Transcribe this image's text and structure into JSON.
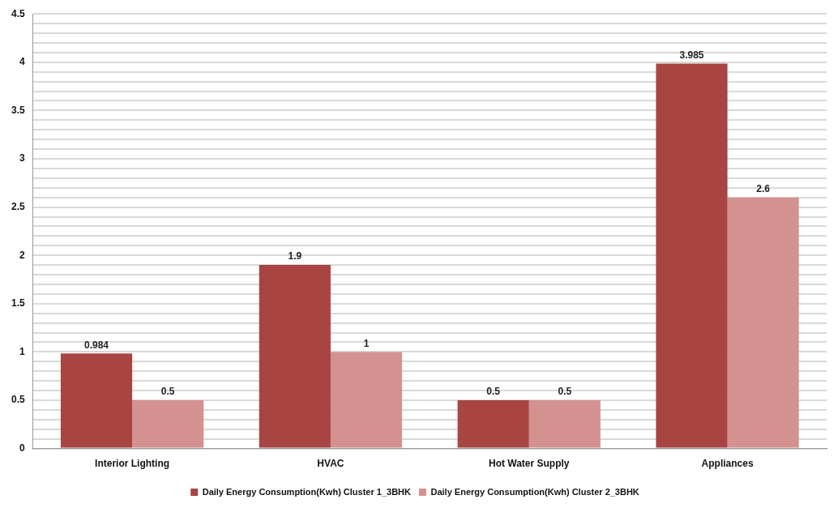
{
  "chart_data": {
    "type": "bar",
    "categories": [
      "Interior Lighting",
      "HVAC",
      "Hot Water Supply",
      "Appliances"
    ],
    "series": [
      {
        "name": "Daily Energy Consumption(Kwh) Cluster 1_3BHK",
        "color": "#a84442",
        "values": [
          0.984,
          1.9,
          0.5,
          3.985
        ]
      },
      {
        "name": "Daily Energy Consumption(Kwh) Cluster 2_3BHK",
        "color": "#d39190",
        "values": [
          0.5,
          1,
          0.5,
          2.6
        ]
      }
    ],
    "ylim": [
      0,
      4.5
    ],
    "yticks": [
      0,
      {
        "value": 0.1,
        "label": null
      },
      {
        "value": 0.2,
        "label": null
      },
      {
        "value": 0.3,
        "label": null
      },
      {
        "value": 0.4,
        "label": null
      },
      0.5,
      {
        "value": 0.6,
        "label": null
      },
      {
        "value": 0.7,
        "label": null
      },
      {
        "value": 0.8,
        "label": null
      },
      {
        "value": 0.9,
        "label": null
      },
      1,
      {
        "value": 1.1,
        "label": null
      },
      {
        "value": 1.2,
        "label": null
      },
      {
        "value": 1.3,
        "label": null
      },
      {
        "value": 1.4,
        "label": null
      },
      1.5,
      {
        "value": 1.6,
        "label": null
      },
      {
        "value": 1.7,
        "label": null
      },
      {
        "value": 1.8,
        "label": null
      },
      {
        "value": 1.9,
        "label": null
      },
      2,
      {
        "value": 2.1,
        "label": null
      },
      {
        "value": 2.2,
        "label": null
      },
      {
        "value": 2.3,
        "label": null
      },
      {
        "value": 2.4,
        "label": null
      },
      2.5,
      {
        "value": 2.6,
        "label": null
      },
      {
        "value": 2.7,
        "label": null
      },
      {
        "value": 2.8,
        "label": null
      },
      {
        "value": 2.9,
        "label": null
      },
      3,
      {
        "value": 3.1,
        "label": null
      },
      {
        "value": 3.2,
        "label": null
      },
      {
        "value": 3.3,
        "label": null
      },
      {
        "value": 3.4,
        "label": null
      },
      3.5,
      {
        "value": 3.6,
        "label": null
      },
      {
        "value": 3.7,
        "label": null
      },
      {
        "value": 3.8,
        "label": null
      },
      {
        "value": 3.9,
        "label": null
      },
      4,
      {
        "value": 4.1,
        "label": null
      },
      {
        "value": 4.2,
        "label": null
      },
      {
        "value": 4.3,
        "label": null
      },
      {
        "value": 4.4,
        "label": null
      },
      4.5
    ],
    "grid": "y",
    "legend": "bottom",
    "data_labels": true
  }
}
